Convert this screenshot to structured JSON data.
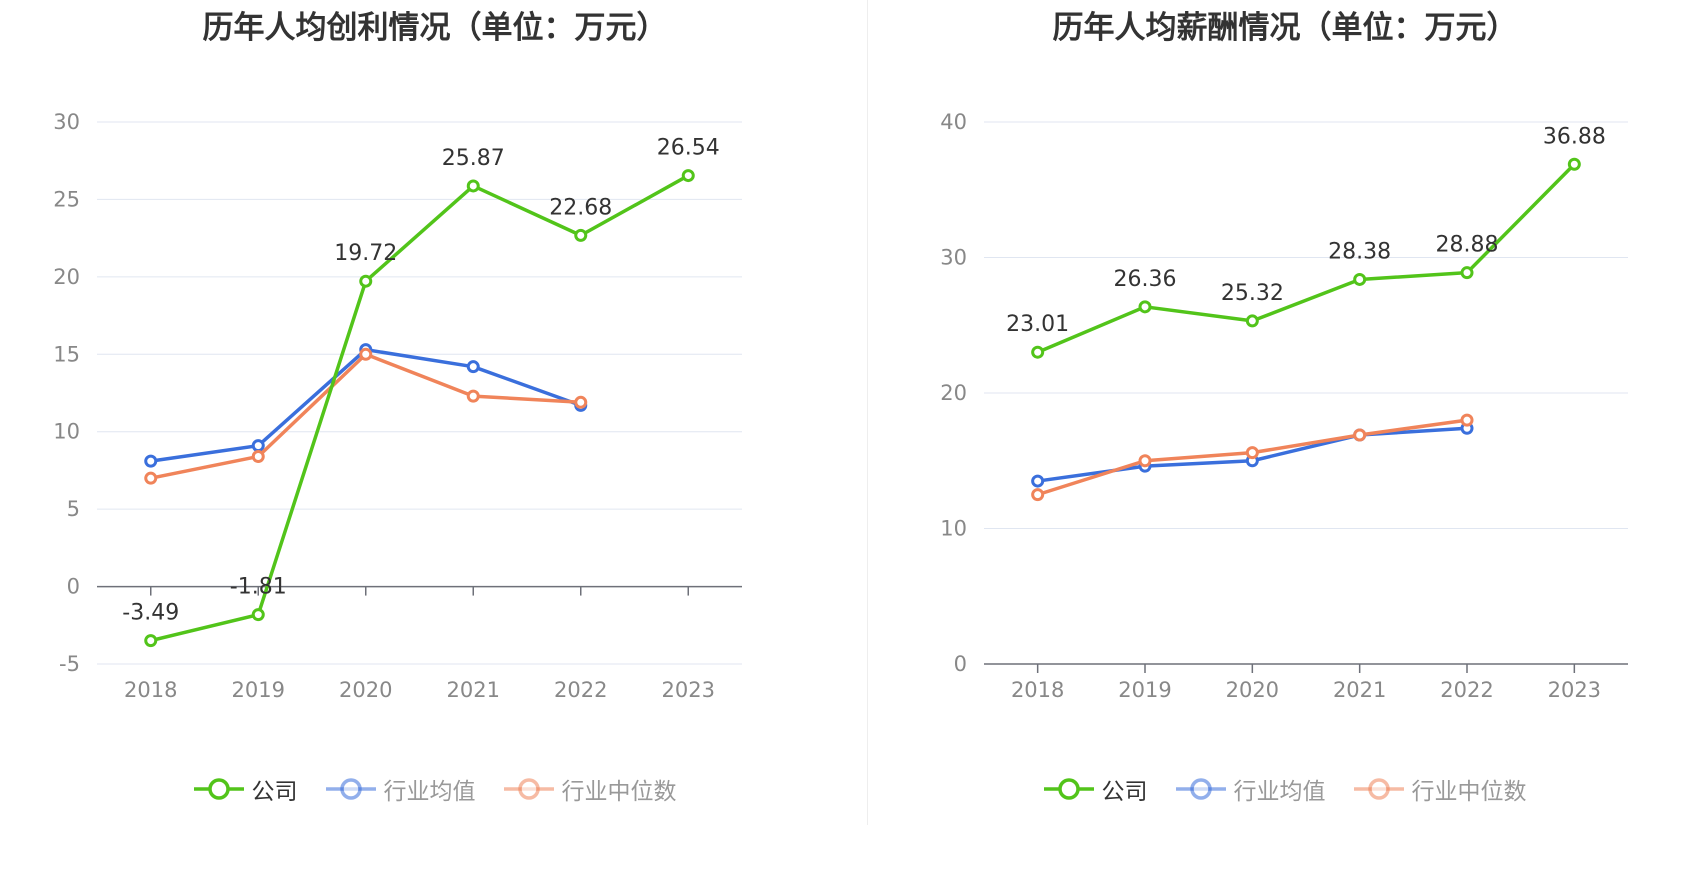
{
  "chart_data": [
    {
      "type": "line",
      "title": "历年人均创利情况（单位：万元）",
      "categories": [
        "2018",
        "2019",
        "2020",
        "2021",
        "2022",
        "2023"
      ],
      "ylim": [
        -5,
        30
      ],
      "yticks": [
        -5,
        0,
        5,
        10,
        15,
        20,
        25,
        30
      ],
      "grid": true,
      "legend_position": "bottom",
      "series": [
        {
          "name": "公司",
          "color": "#52c41a",
          "values": [
            -3.49,
            -1.81,
            19.72,
            25.87,
            22.68,
            26.54
          ],
          "labels": [
            "-3.49",
            "-1.81",
            "19.72",
            "25.87",
            "22.68",
            "26.54"
          ]
        },
        {
          "name": "行业均值",
          "color": "#3a6fdc",
          "values": [
            8.1,
            9.1,
            15.3,
            14.2,
            11.7,
            null
          ]
        },
        {
          "name": "行业中位数",
          "color": "#f0845a",
          "values": [
            7.0,
            8.4,
            15.0,
            12.3,
            11.9,
            null
          ]
        }
      ]
    },
    {
      "type": "line",
      "title": "历年人均薪酬情况（单位：万元）",
      "categories": [
        "2018",
        "2019",
        "2020",
        "2021",
        "2022",
        "2023"
      ],
      "ylim": [
        0,
        40
      ],
      "yticks": [
        0,
        10,
        20,
        30,
        40
      ],
      "grid": true,
      "legend_position": "bottom",
      "series": [
        {
          "name": "公司",
          "color": "#52c41a",
          "values": [
            23.01,
            26.36,
            25.32,
            28.38,
            28.88,
            36.88
          ],
          "labels": [
            "23.01",
            "26.36",
            "25.32",
            "28.38",
            "28.88",
            "36.88"
          ]
        },
        {
          "name": "行业均值",
          "color": "#3a6fdc",
          "values": [
            13.5,
            14.6,
            15.0,
            16.9,
            17.4,
            null
          ]
        },
        {
          "name": "行业中位数",
          "color": "#f0845a",
          "values": [
            12.5,
            15.0,
            15.6,
            16.9,
            18.0,
            null
          ]
        }
      ]
    }
  ]
}
